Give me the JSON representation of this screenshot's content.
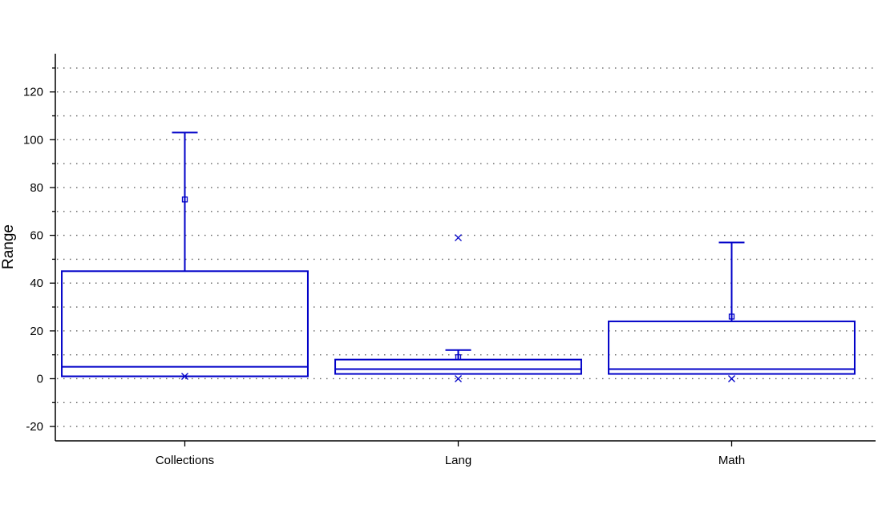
{
  "chart_data": {
    "type": "box",
    "ylabel": "Range",
    "xlabel": "",
    "ylim": [
      -26,
      136
    ],
    "yticks": [
      -20,
      0,
      20,
      40,
      60,
      80,
      100,
      120
    ],
    "yticks_text": [
      "-20",
      "0",
      "20",
      "40",
      "60",
      "80",
      "100",
      "120"
    ],
    "grid": true,
    "grid_style": "dotted",
    "categories": [
      "Collections",
      "Lang",
      "Math"
    ],
    "boxes": [
      {
        "category": "Collections",
        "whisker_low": 1,
        "q1": 1,
        "median": 5,
        "q3": 45,
        "whisker_high": 103,
        "mean": 75,
        "outliers": [],
        "extremes": [
          1
        ]
      },
      {
        "category": "Lang",
        "whisker_low": 2,
        "q1": 2,
        "median": 4,
        "q3": 8,
        "whisker_high": 12,
        "mean": 9,
        "outliers": [],
        "extremes": [
          59,
          0
        ]
      },
      {
        "category": "Math",
        "whisker_low": 2,
        "q1": 2,
        "median": 4,
        "q3": 24,
        "whisker_high": 57,
        "mean": 26,
        "outliers": [],
        "extremes": [
          0
        ]
      }
    ],
    "colors": {
      "box": "#0000c8",
      "axis": "#000000",
      "grid": "#606060"
    }
  }
}
